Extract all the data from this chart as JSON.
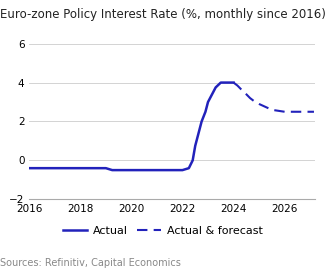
{
  "title": "Euro-zone Policy Interest Rate (%, monthly since 2016)",
  "source": "Sources: Refinitiv, Capital Economics",
  "line_color": "#2222BB",
  "ylim": [
    -2,
    6
  ],
  "yticks": [
    -2,
    0,
    2,
    4,
    6
  ],
  "xlim": [
    2016,
    2027.2
  ],
  "xticks": [
    2016,
    2018,
    2020,
    2022,
    2024,
    2026
  ],
  "actual_x": [
    2016.0,
    2016.5,
    2017.0,
    2017.5,
    2018.0,
    2018.5,
    2019.0,
    2019.25,
    2019.5,
    2019.75,
    2020.0,
    2020.5,
    2021.0,
    2021.5,
    2022.0,
    2022.25,
    2022.4,
    2022.5,
    2022.6,
    2022.75,
    2022.9,
    2023.0,
    2023.1,
    2023.2,
    2023.3,
    2023.5,
    2023.75,
    2024.0
  ],
  "actual_y": [
    -0.4,
    -0.4,
    -0.4,
    -0.4,
    -0.4,
    -0.4,
    -0.4,
    -0.5,
    -0.5,
    -0.5,
    -0.5,
    -0.5,
    -0.5,
    -0.5,
    -0.5,
    -0.4,
    0.0,
    0.75,
    1.25,
    2.0,
    2.5,
    3.0,
    3.25,
    3.5,
    3.75,
    4.0,
    4.0,
    4.0
  ],
  "forecast_x": [
    2024.0,
    2024.15,
    2024.3,
    2024.5,
    2024.65,
    2024.8,
    2025.0,
    2025.25,
    2025.5,
    2025.75,
    2026.0,
    2026.25,
    2026.5,
    2026.75,
    2027.0,
    2027.15
  ],
  "forecast_y": [
    4.0,
    3.85,
    3.65,
    3.4,
    3.2,
    3.05,
    2.9,
    2.75,
    2.6,
    2.55,
    2.5,
    2.5,
    2.5,
    2.5,
    2.5,
    2.5
  ],
  "legend_actual_label": "Actual",
  "legend_forecast_label": "Actual & forecast",
  "title_fontsize": 8.5,
  "axis_fontsize": 7.5,
  "source_fontsize": 7,
  "legend_fontsize": 8
}
